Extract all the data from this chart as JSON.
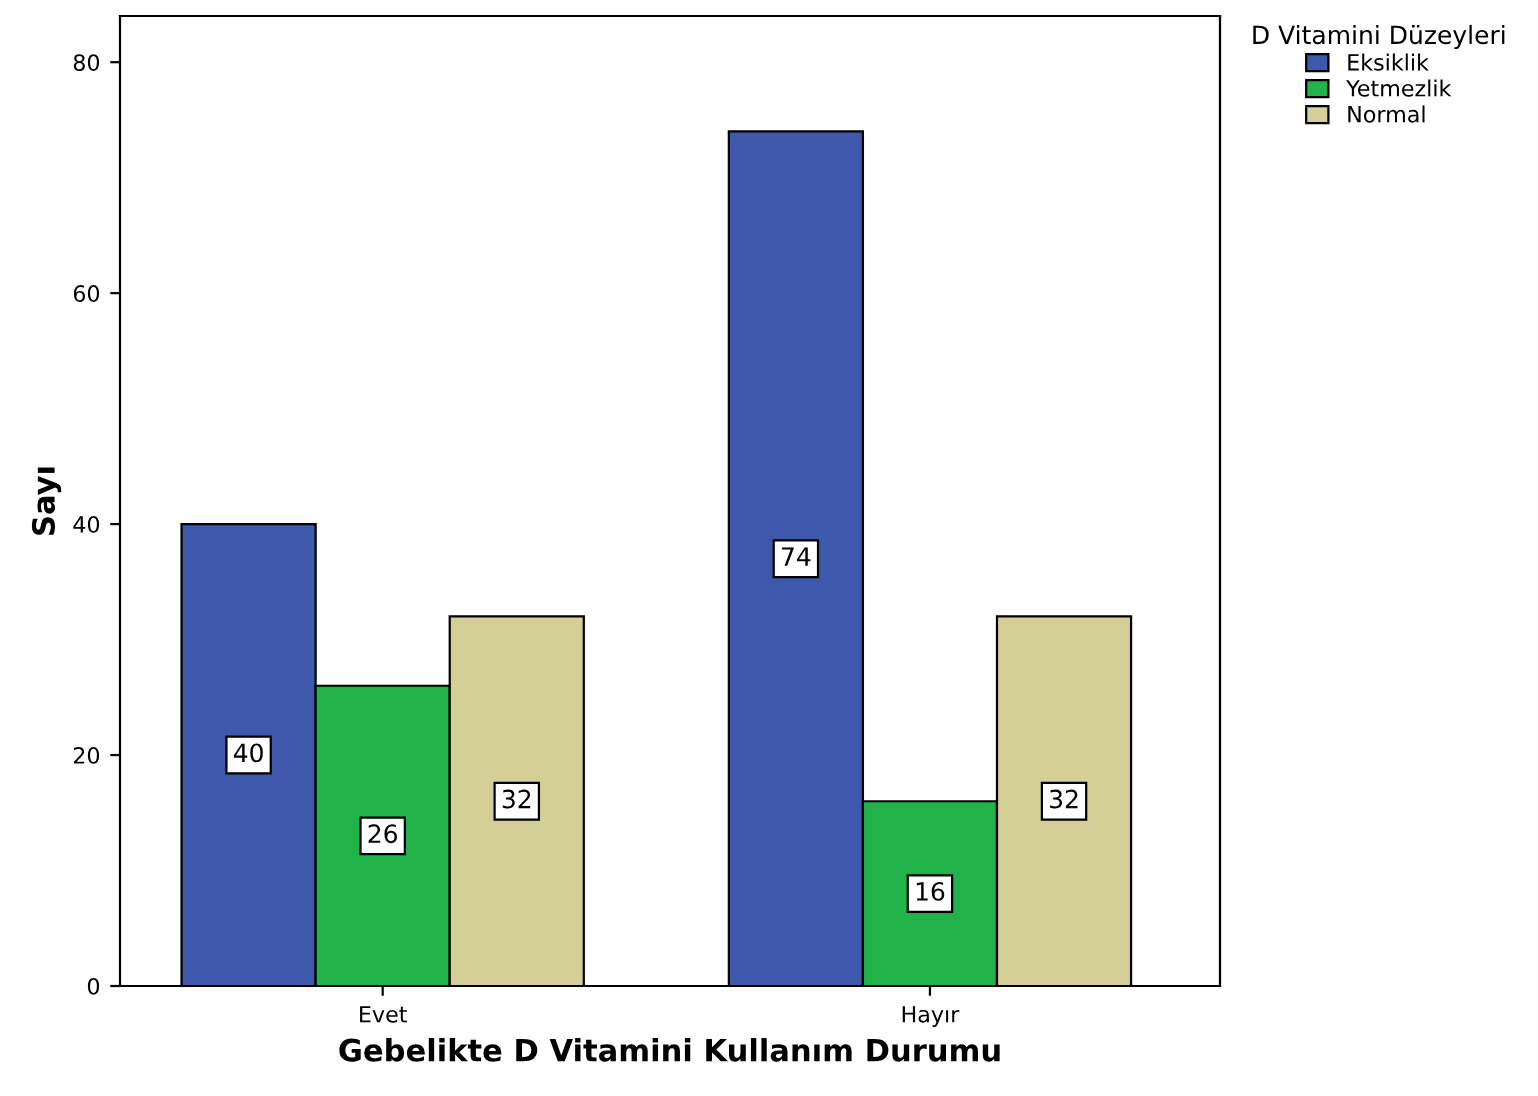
{
  "chart_data": {
    "type": "bar",
    "xlabel": "Gebelikte D Vitamini Kullanım Durumu",
    "ylabel": "Sayı",
    "legend_title": "D Vitamini Düzeyleri",
    "categories": [
      "Evet",
      "Hayır"
    ],
    "series": [
      {
        "name": "Eksiklik",
        "color": "#3e58ac",
        "values": [
          40,
          74
        ]
      },
      {
        "name": "Yetmezlik",
        "color": "#21b24a",
        "values": [
          26,
          16
        ]
      },
      {
        "name": "Normal",
        "color": "#d4cf96",
        "values": [
          32,
          32
        ]
      }
    ],
    "ylim": [
      0,
      84
    ],
    "yticks": [
      0,
      20,
      40,
      60,
      80
    ],
    "grid": false,
    "legend": "top right",
    "data_labels": true
  }
}
